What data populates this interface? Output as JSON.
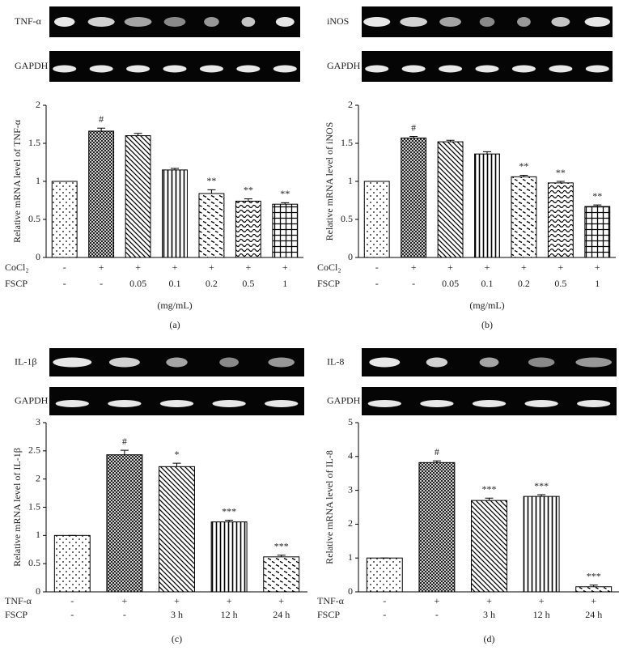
{
  "chart_data": [
    {
      "type": "bar",
      "panel_label": "(a)",
      "gel_labels": [
        "TNF-α",
        "GAPDH"
      ],
      "ylabel": "Relative mRNA level of TNF-α",
      "values": [
        1,
        1.66,
        1.6,
        1.15,
        0.84,
        0.74,
        0.7
      ],
      "errors": [
        0,
        0.04,
        0.03,
        0.02,
        0.05,
        0.03,
        0.02
      ],
      "annotations": [
        null,
        "#",
        null,
        null,
        "**",
        "**",
        "**"
      ],
      "treatments": [
        {
          "name": "CoCl₂",
          "labels": [
            "-",
            "+",
            "+",
            "+",
            "+",
            "+",
            "+"
          ]
        },
        {
          "name": "FSCP",
          "labels": [
            "-",
            "-",
            "0.05",
            "0.1",
            "0.2",
            "0.5",
            "1"
          ]
        }
      ],
      "unit": "(mg/mL)",
      "ylim": [
        0,
        2
      ],
      "yticks": [
        0,
        0.5,
        1,
        1.5,
        2
      ]
    },
    {
      "type": "bar",
      "panel_label": "(b)",
      "gel_labels": [
        "iNOS",
        "GAPDH"
      ],
      "ylabel": "Relative mRNA level of iNOS",
      "values": [
        1,
        1.57,
        1.52,
        1.36,
        1.06,
        0.98,
        0.67
      ],
      "errors": [
        0,
        0.02,
        0.02,
        0.03,
        0.02,
        0.02,
        0.02
      ],
      "annotations": [
        null,
        "#",
        null,
        null,
        "**",
        "**",
        "**"
      ],
      "treatments": [
        {
          "name": "CoCl₂",
          "labels": [
            "-",
            "+",
            "+",
            "+",
            "+",
            "+",
            "+"
          ]
        },
        {
          "name": "FSCP",
          "labels": [
            "-",
            "-",
            "0.05",
            "0.1",
            "0.2",
            "0.5",
            "1"
          ]
        }
      ],
      "unit": "(mg/mL)",
      "ylim": [
        0,
        2
      ],
      "yticks": [
        0,
        0.5,
        1,
        1.5,
        2
      ]
    },
    {
      "type": "bar",
      "panel_label": "(c)",
      "gel_labels": [
        "IL-1β",
        "GAPDH"
      ],
      "ylabel": "Relative mRNA level of IL-1β",
      "values": [
        1,
        2.43,
        2.22,
        1.24,
        0.62
      ],
      "errors": [
        0,
        0.08,
        0.06,
        0.03,
        0.03
      ],
      "annotations": [
        null,
        "#",
        "*",
        "***",
        "***"
      ],
      "treatments": [
        {
          "name": "TNF-α",
          "labels": [
            "-",
            "+",
            "+",
            "+",
            "+"
          ]
        },
        {
          "name": "FSCP",
          "labels": [
            "-",
            "-",
            "3 h",
            "12 h",
            "24 h"
          ]
        }
      ],
      "ylim": [
        0,
        3
      ],
      "yticks": [
        0,
        0.5,
        1,
        1.5,
        2,
        2.5,
        3
      ]
    },
    {
      "type": "bar",
      "panel_label": "(d)",
      "gel_labels": [
        "IL-8",
        "GAPDH"
      ],
      "ylabel": "Relative mRNA level of IL-8",
      "values": [
        1,
        3.82,
        2.7,
        2.82,
        0.15
      ],
      "errors": [
        0,
        0.05,
        0.07,
        0.05,
        0.05
      ],
      "annotations": [
        null,
        "#",
        "***",
        "***",
        "***"
      ],
      "treatments": [
        {
          "name": "TNF-α",
          "labels": [
            "-",
            "+",
            "+",
            "+",
            "+"
          ]
        },
        {
          "name": "FSCP",
          "labels": [
            "-",
            "-",
            "3 h",
            "12 h",
            "24 h"
          ]
        }
      ],
      "ylim": [
        0,
        5
      ],
      "yticks": [
        0,
        1,
        2,
        3,
        4,
        5
      ]
    }
  ]
}
